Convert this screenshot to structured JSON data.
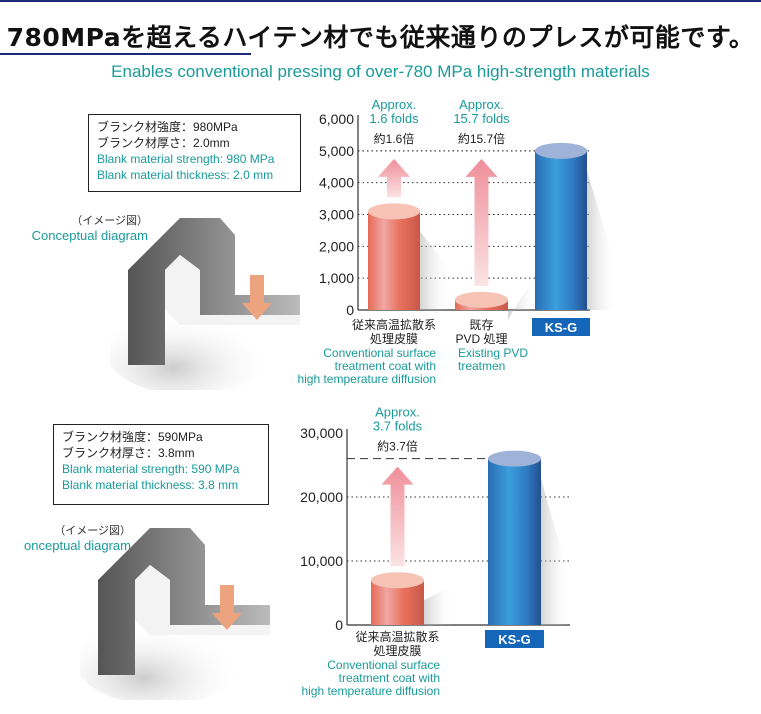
{
  "header": {
    "title": "780MPaを超えるハイテン材でも従来通りのプレスが可能です。",
    "subtitle": "Enables conventional pressing of  over-780 MPa high-strength materials"
  },
  "panels": [
    {
      "spec_jp": [
        "ブランク材強度：980MPa",
        "ブランク材厚さ：2.0mm"
      ],
      "spec_en": [
        "Blank material strength: 980 MPa",
        "Blank material thickness: 2.0 mm"
      ],
      "image_caption_jp": "（イメージ図）",
      "image_caption_en": "Conceptual diagram"
    },
    {
      "spec_jp": [
        "ブランク材強度：590MPa",
        "ブランク材厚さ：3.8mm"
      ],
      "spec_en": [
        "Blank material strength: 590 MPa",
        "Blank material thickness: 3.8 mm"
      ],
      "image_caption_jp": "（イメージ図）",
      "image_caption_en": "onceptual diagram"
    }
  ],
  "colors": {
    "accent_teal": "#1a9a9a",
    "ksg_blue": "#2f7fc8",
    "conventional_red": "#e8735e",
    "arrow_pink": "#ef9aa3",
    "navy": "#1d2a7a"
  },
  "chart_data": [
    {
      "type": "bar",
      "ylim": [
        0,
        6000
      ],
      "yticks": [
        "0",
        "1,000",
        "2,000",
        "3,000",
        "4,000",
        "5,000",
        "6,000"
      ],
      "ytick_values": [
        0,
        1000,
        2000,
        3000,
        4000,
        5000,
        6000
      ],
      "grid": "dotted horizontal",
      "reference_line": 5000,
      "categories": [
        {
          "jp": [
            "従来高温拡散系",
            "処理皮膜"
          ],
          "en": [
            "Conventional surface",
            "treatment coat with",
            "high temperature diffusion"
          ]
        },
        {
          "jp": [
            "既存",
            "PVD 処理"
          ],
          "en": [
            "Existing PVD",
            "treatmen"
          ]
        },
        {
          "label": "KS-G"
        }
      ],
      "values": [
        3100,
        320,
        5000
      ],
      "annotations": [
        {
          "en": [
            "Approx.",
            "1.6 folds"
          ],
          "jp": "約1.6倍"
        },
        {
          "en": [
            "Approx.",
            "15.7 folds"
          ],
          "jp": "約15.7倍"
        }
      ]
    },
    {
      "type": "bar",
      "ylim": [
        0,
        30000
      ],
      "yticks": [
        "0",
        "10,000",
        "20,000",
        "30,000"
      ],
      "ytick_values": [
        0,
        10000,
        20000,
        30000
      ],
      "grid": "dotted horizontal",
      "reference_line": 26000,
      "categories": [
        {
          "jp": [
            "従来高温拡散系",
            "処理皮膜"
          ],
          "en": [
            "Conventional surface",
            "treatment coat with",
            "high temperature diffusion"
          ]
        },
        {
          "label": "KS-G"
        }
      ],
      "values": [
        7000,
        26000
      ],
      "annotations": [
        {
          "en": [
            "Approx.",
            "3.7 folds"
          ],
          "jp": "約3.7倍"
        }
      ]
    }
  ]
}
